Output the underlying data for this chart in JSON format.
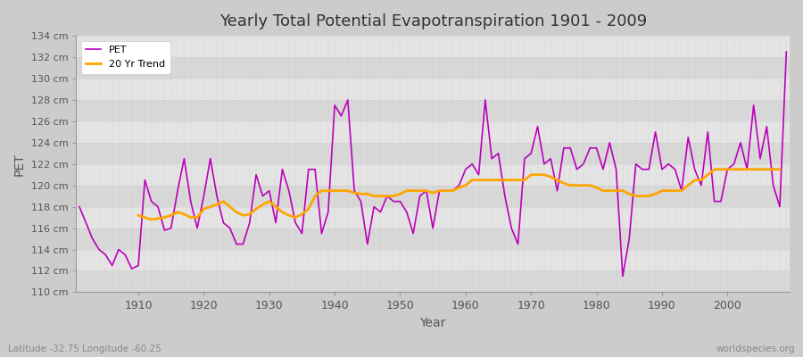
{
  "title": "Yearly Total Potential Evapotranspiration 1901 - 2009",
  "xlabel": "Year",
  "ylabel": "PET",
  "subtitle": "Latitude -32.75 Longitude -60.25",
  "watermark": "worldspecies.org",
  "ylim": [
    110,
    134
  ],
  "ytick_step": 2,
  "pet_color": "#BB00BB",
  "trend_color": "#FFA500",
  "plot_bg": "#E0E0E0",
  "fig_bg": "#CCCCCC",
  "legend_labels": [
    "PET",
    "20 Yr Trend"
  ],
  "years": [
    1901,
    1902,
    1903,
    1904,
    1905,
    1906,
    1907,
    1908,
    1909,
    1910,
    1911,
    1912,
    1913,
    1914,
    1915,
    1916,
    1917,
    1918,
    1919,
    1920,
    1921,
    1922,
    1923,
    1924,
    1925,
    1926,
    1927,
    1928,
    1929,
    1930,
    1931,
    1932,
    1933,
    1934,
    1935,
    1936,
    1937,
    1938,
    1939,
    1940,
    1941,
    1942,
    1943,
    1944,
    1945,
    1946,
    1947,
    1948,
    1949,
    1950,
    1951,
    1952,
    1953,
    1954,
    1955,
    1956,
    1957,
    1958,
    1959,
    1960,
    1961,
    1962,
    1963,
    1964,
    1965,
    1966,
    1967,
    1968,
    1969,
    1970,
    1971,
    1972,
    1973,
    1974,
    1975,
    1976,
    1977,
    1978,
    1979,
    1980,
    1981,
    1982,
    1983,
    1984,
    1985,
    1986,
    1987,
    1988,
    1989,
    1990,
    1991,
    1992,
    1993,
    1994,
    1995,
    1996,
    1997,
    1998,
    1999,
    2000,
    2001,
    2002,
    2003,
    2004,
    2005,
    2006,
    2007,
    2008,
    2009
  ],
  "pet_values": [
    118.0,
    116.5,
    115.0,
    114.0,
    113.5,
    112.5,
    114.0,
    113.5,
    112.2,
    112.5,
    120.5,
    118.5,
    118.0,
    115.8,
    116.0,
    119.5,
    122.5,
    118.5,
    116.0,
    119.0,
    122.5,
    119.0,
    116.5,
    116.0,
    114.5,
    114.5,
    116.5,
    121.0,
    119.0,
    119.5,
    116.5,
    121.5,
    119.5,
    116.5,
    115.5,
    121.5,
    121.5,
    115.5,
    117.5,
    127.5,
    126.5,
    128.0,
    119.5,
    118.5,
    114.5,
    118.0,
    117.5,
    119.0,
    118.5,
    118.5,
    117.5,
    115.5,
    119.0,
    119.5,
    116.0,
    119.5,
    119.5,
    119.5,
    120.0,
    121.5,
    122.0,
    121.0,
    128.0,
    122.5,
    123.0,
    119.0,
    116.0,
    114.5,
    122.5,
    123.0,
    125.5,
    122.0,
    122.5,
    119.5,
    123.5,
    123.5,
    121.5,
    122.0,
    123.5,
    123.5,
    121.5,
    124.0,
    121.5,
    111.5,
    115.0,
    122.0,
    121.5,
    121.5,
    125.0,
    121.5,
    122.0,
    121.5,
    119.5,
    124.5,
    121.5,
    120.0,
    125.0,
    118.5,
    118.5,
    121.5,
    122.0,
    124.0,
    121.5,
    127.5,
    122.5,
    125.5,
    120.0,
    118.0,
    132.5
  ],
  "trend_values": [
    null,
    null,
    null,
    null,
    null,
    null,
    null,
    null,
    null,
    117.2,
    117.0,
    116.8,
    116.9,
    117.0,
    117.2,
    117.5,
    117.3,
    117.0,
    117.0,
    117.8,
    118.0,
    118.2,
    118.5,
    118.0,
    117.5,
    117.2,
    117.3,
    117.8,
    118.2,
    118.5,
    118.0,
    117.5,
    117.2,
    117.0,
    117.3,
    117.8,
    119.0,
    119.5,
    119.5,
    119.5,
    119.5,
    119.5,
    119.3,
    119.2,
    119.2,
    119.0,
    119.0,
    119.0,
    119.0,
    119.2,
    119.5,
    119.5,
    119.5,
    119.5,
    119.3,
    119.5,
    119.5,
    119.5,
    119.8,
    120.0,
    120.5,
    120.5,
    120.5,
    120.5,
    120.5,
    120.5,
    120.5,
    120.5,
    120.5,
    121.0,
    121.0,
    121.0,
    120.8,
    120.5,
    120.2,
    120.0,
    120.0,
    120.0,
    120.0,
    119.8,
    119.5,
    119.5,
    119.5,
    119.5,
    119.2,
    119.0,
    119.0,
    119.0,
    119.2,
    119.5,
    119.5,
    119.5,
    119.5,
    120.0,
    120.5,
    120.5,
    121.0,
    121.5,
    121.5,
    121.5,
    121.5,
    121.5,
    121.5,
    121.5,
    121.5,
    121.5,
    121.5,
    121.5,
    null
  ]
}
